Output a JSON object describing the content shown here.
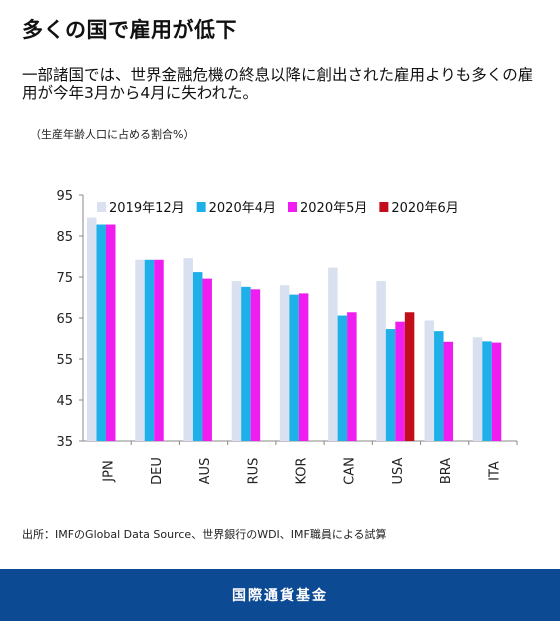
{
  "header": {
    "title": "多くの国で雇用が低下",
    "subtitle": "一部諸国では、世界金融危機の終息以降に創出された雇用よりも多くの雇用が今年3月から4月に失われた。"
  },
  "source_note": "出所：IMFのGlobal Data Source、世界銀行のWDI、IMF職員による試算",
  "footer": {
    "organization": "国際通貨基金"
  },
  "chart_data": {
    "type": "bar",
    "title": "",
    "ylabel": "（生産年齢人口に占める割合%）",
    "xlabel": "",
    "ylim": [
      35,
      95
    ],
    "yticks": [
      35,
      45,
      55,
      65,
      75,
      85,
      95
    ],
    "grid": false,
    "legend_position": "top",
    "categories": [
      "JPN",
      "DEU",
      "AUS",
      "RUS",
      "KOR",
      "CAN",
      "USA",
      "BRA",
      "ITA"
    ],
    "series": [
      {
        "name": "2019年12月",
        "color": "#d9e1f0",
        "values": [
          89.5,
          79.2,
          79.6,
          74.0,
          73.0,
          77.3,
          74.0,
          64.4,
          60.3
        ]
      },
      {
        "name": "2020年4月",
        "color": "#1fb0ea",
        "values": [
          87.8,
          79.2,
          76.2,
          72.6,
          70.7,
          65.6,
          62.3,
          61.8,
          59.3
        ]
      },
      {
        "name": "2020年5月",
        "color": "#f01df0",
        "values": [
          87.8,
          79.2,
          74.6,
          72.0,
          71.0,
          66.4,
          64.1,
          59.2,
          59.0
        ]
      },
      {
        "name": "2020年6月",
        "color": "#c10e1a",
        "values": [
          null,
          null,
          null,
          null,
          null,
          null,
          66.4,
          null,
          null
        ]
      }
    ]
  }
}
